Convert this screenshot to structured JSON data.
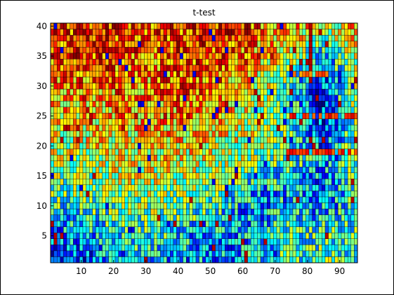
{
  "chart_data": {
    "type": "heatmap",
    "title": "t-test",
    "xlabel": "",
    "ylabel": "",
    "n_cols": 95,
    "n_rows": 40,
    "xlim": [
      0.5,
      95.5
    ],
    "ylim": [
      0.5,
      40.5
    ],
    "x_ticks": [
      10,
      20,
      30,
      40,
      50,
      60,
      70,
      80,
      90
    ],
    "y_ticks": [
      5,
      10,
      15,
      20,
      25,
      30,
      35,
      40
    ],
    "colormap": "jet",
    "grid": true,
    "colorbar": false,
    "value_range": [
      0,
      1
    ],
    "regions_note": "",
    "coarse_grid_cols": 10,
    "coarse_grid_rows": 8,
    "coarse_values": [
      [
        0.82,
        0.86,
        0.87,
        0.8,
        0.86,
        0.87,
        0.8,
        0.72,
        0.62,
        0.68
      ],
      [
        0.78,
        0.84,
        0.8,
        0.76,
        0.82,
        0.82,
        0.72,
        0.58,
        0.28,
        0.6
      ],
      [
        0.72,
        0.74,
        0.74,
        0.72,
        0.78,
        0.72,
        0.62,
        0.38,
        0.18,
        0.55
      ],
      [
        0.6,
        0.64,
        0.66,
        0.68,
        0.7,
        0.66,
        0.58,
        0.42,
        0.16,
        0.48
      ],
      [
        0.52,
        0.56,
        0.58,
        0.62,
        0.6,
        0.56,
        0.48,
        0.45,
        0.28,
        0.5
      ],
      [
        0.44,
        0.48,
        0.52,
        0.54,
        0.5,
        0.44,
        0.32,
        0.3,
        0.24,
        0.42
      ],
      [
        0.3,
        0.34,
        0.4,
        0.44,
        0.38,
        0.32,
        0.28,
        0.4,
        0.4,
        0.44
      ],
      [
        0.18,
        0.16,
        0.3,
        0.36,
        0.28,
        0.26,
        0.34,
        0.42,
        0.48,
        0.4
      ]
    ],
    "accent_columns": [
      {
        "col": 81,
        "from_row": 31,
        "to_row": 40,
        "value": 0.95
      }
    ],
    "accent_rows": [
      {
        "row": 25,
        "from_col": 75,
        "to_col": 95,
        "value": 0.92
      },
      {
        "row": 19,
        "from_col": 74,
        "to_col": 95,
        "value": 0.92
      },
      {
        "row": 32,
        "from_col": 76,
        "to_col": 86,
        "value": 0.85
      }
    ],
    "colors": {
      "background": "#ffffff",
      "axis": "#000000",
      "cell_edge": "#000000"
    }
  }
}
